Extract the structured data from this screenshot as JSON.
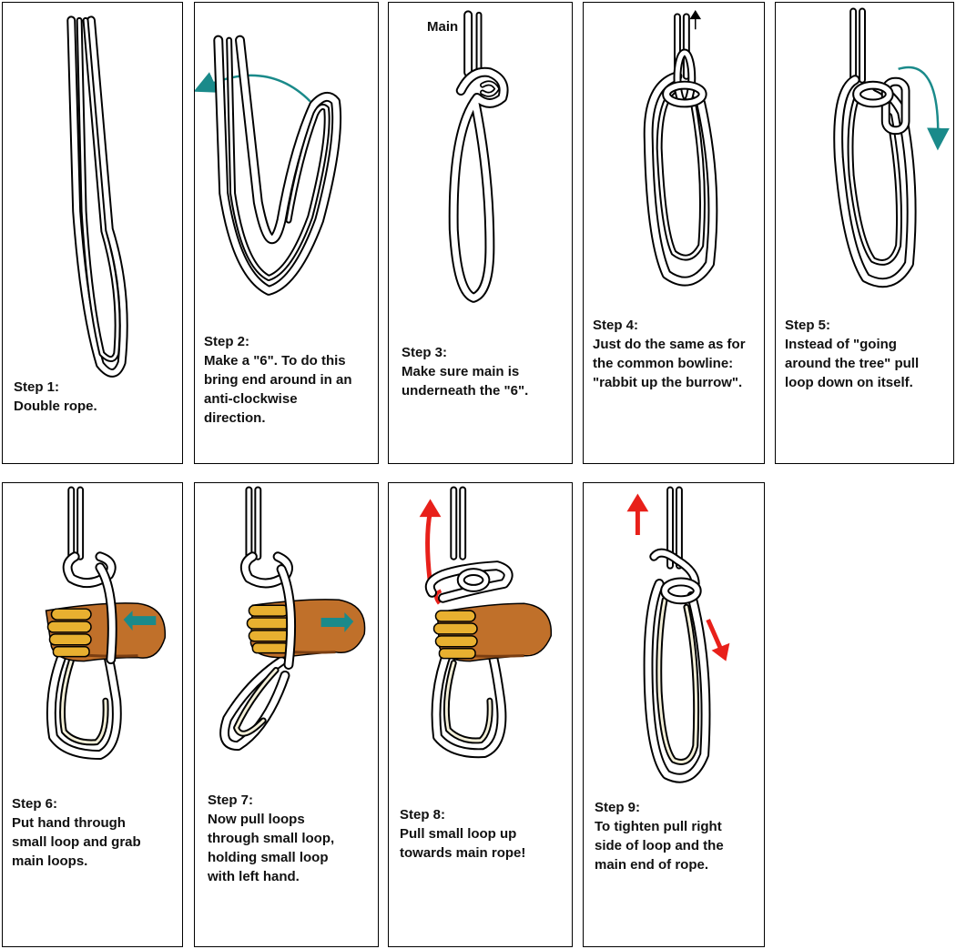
{
  "steps": [
    {
      "label": "Step 1:",
      "text": "Double rope."
    },
    {
      "label": "Step 2:",
      "text": "Make a \"6\". To do this\nbring end around in an\nanti-clockwise\ndirection."
    },
    {
      "label": "Step 3:",
      "text": "Make sure main is\nunderneath the \"6\"."
    },
    {
      "label": "Step 4:",
      "text": "Just do the same as for\nthe common bowline:\n\"rabbit up the burrow\"."
    },
    {
      "label": "Step 5:",
      "text": "Instead of \"going\naround the tree\" pull\nloop down on itself."
    },
    {
      "label": "Step 6:",
      "text": "Put hand through\nsmall loop and grab\nmain loops."
    },
    {
      "label": "Step 7:",
      "text": "Now pull loops\nthrough small loop,\nholding small loop\nwith left hand."
    },
    {
      "label": "Step 8:",
      "text": "Pull small loop up\ntowards main rope!"
    },
    {
      "label": "Step 9:",
      "text": "To tighten pull right\nside of loop and the\nmain end of rope."
    }
  ],
  "main_label": "Main",
  "colors": {
    "rope_outline": "#000000",
    "rope_fill": "#ffffff",
    "rope_inner": "#f3efd8",
    "arrow_teal": "#1a8a8a",
    "arrow_red": "#e8201a",
    "hand": "#c0702a",
    "hand_shadow": "#7a3e12",
    "finger": "#e8b030"
  }
}
